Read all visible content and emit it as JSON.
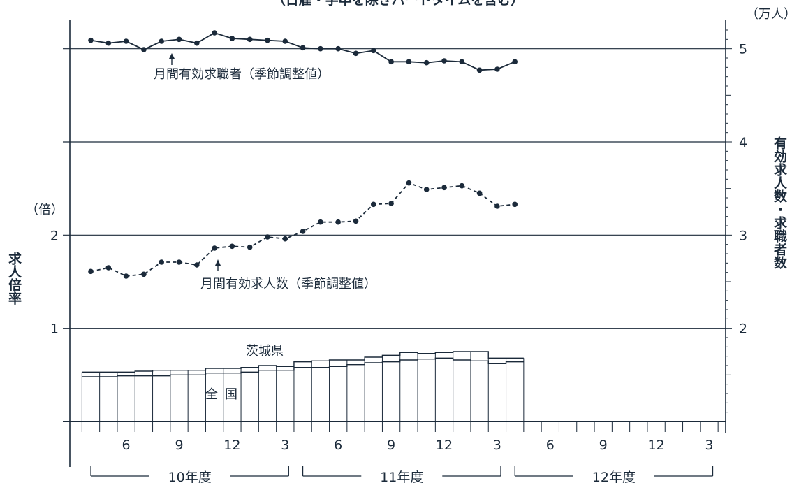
{
  "chart_data": {
    "type": "line",
    "title": "（日雇・学卒を除きパートタイムを含む）",
    "left_axis": {
      "unit": "（倍）",
      "label": "求人倍率",
      "ticks": [
        "1",
        "2"
      ],
      "ylim": [
        0,
        4.5
      ]
    },
    "right_axis": {
      "unit": "（万人）",
      "label": "有効求人数・求職者数",
      "ticks": [
        "2",
        "3",
        "4",
        "5"
      ],
      "ylim": [
        1,
        5.5
      ]
    },
    "x_tick_labels": [
      "6",
      "9",
      "12",
      "3",
      "6",
      "9",
      "12",
      "3",
      "6",
      "9",
      "12",
      "3"
    ],
    "fiscal_years": [
      "10年度",
      "11年度",
      "12年度"
    ],
    "months_per_year": 12,
    "months_with_data": 25,
    "series": [
      {
        "name": "月間有効求職者（季節調整値）",
        "axis": "right",
        "style": "solid-dots",
        "values": [
          5.09,
          5.06,
          5.08,
          4.99,
          5.08,
          5.1,
          5.06,
          5.17,
          5.11,
          5.1,
          5.09,
          5.08,
          5.01,
          5.0,
          5.0,
          4.95,
          4.98,
          4.86,
          4.86,
          4.85,
          4.87,
          4.86,
          4.77,
          4.78,
          4.86
        ]
      },
      {
        "name": "月間有効求人数（季節調整値）",
        "axis": "right",
        "style": "dashed-dots",
        "values": [
          2.61,
          2.65,
          2.56,
          2.58,
          2.71,
          2.71,
          2.68,
          2.86,
          2.88,
          2.87,
          2.98,
          2.96,
          3.04,
          3.14,
          3.14,
          3.15,
          3.33,
          3.34,
          3.56,
          3.49,
          3.51,
          3.53,
          3.45,
          3.31,
          3.33
        ]
      },
      {
        "name": "茨城県",
        "axis": "left",
        "style": "step",
        "values": [
          0.53,
          0.53,
          0.53,
          0.54,
          0.55,
          0.55,
          0.55,
          0.57,
          0.57,
          0.58,
          0.6,
          0.59,
          0.64,
          0.65,
          0.66,
          0.66,
          0.69,
          0.71,
          0.74,
          0.73,
          0.74,
          0.75,
          0.75,
          0.68,
          0.68
        ]
      },
      {
        "name": "全国",
        "axis": "left",
        "style": "step",
        "values": [
          0.48,
          0.48,
          0.49,
          0.49,
          0.49,
          0.5,
          0.5,
          0.52,
          0.52,
          0.53,
          0.55,
          0.55,
          0.58,
          0.58,
          0.59,
          0.61,
          0.63,
          0.64,
          0.66,
          0.67,
          0.68,
          0.66,
          0.65,
          0.62,
          0.64
        ]
      }
    ],
    "annotations": [
      "月間有効求職者（季節調整値）",
      "月間有効求人数（季節調整値）",
      "茨城県",
      "全国"
    ],
    "grid": "horizontal",
    "colors": {
      "ink": "#1b2a3a"
    }
  }
}
